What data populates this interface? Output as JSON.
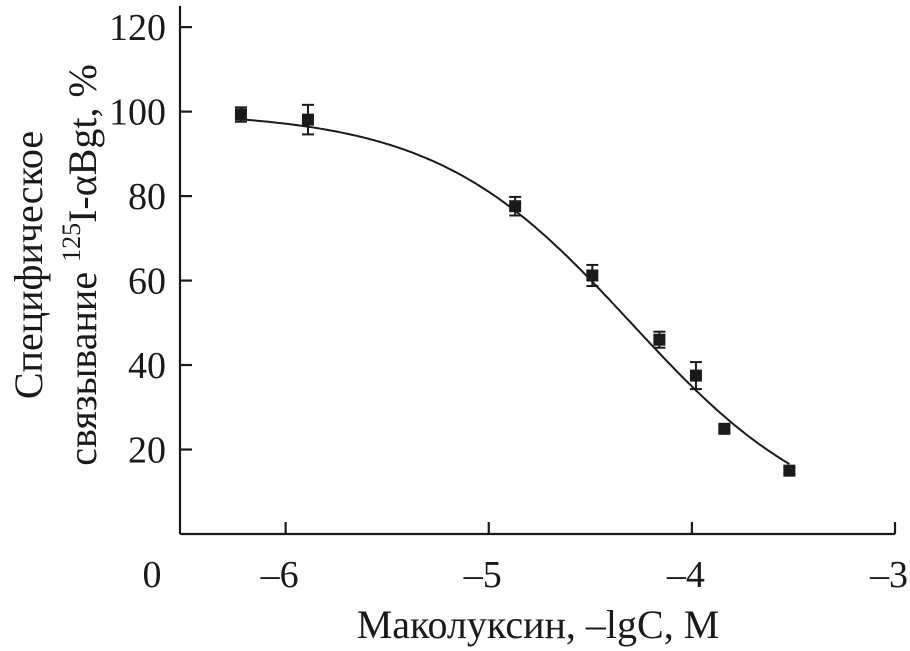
{
  "chart_data": {
    "type": "scatter",
    "xlabel": "Маколуксин, –lgC, М",
    "ylabel_line1": "Специфическое",
    "ylabel_line2_prefix": "связывание ",
    "ylabel_line2_sup": "125",
    "ylabel_line2_suffix": "I-αBgt, %",
    "xlim": [
      -6.52,
      -3
    ],
    "ylim": [
      0,
      125
    ],
    "x_ticks": [
      -6,
      -5,
      -4,
      -3
    ],
    "x_tick_labels": [
      "–6",
      "–5",
      "–4",
      "–3"
    ],
    "y_ticks": [
      20,
      40,
      60,
      80,
      100,
      120
    ],
    "y_tick_labels": [
      "20",
      "40",
      "60",
      "80",
      "100",
      "120"
    ],
    "origin_label": "0",
    "grid": false,
    "points": [
      {
        "x": -6.22,
        "y": 99.3,
        "err": 1.7
      },
      {
        "x": -5.89,
        "y": 98.1,
        "err": 3.5
      },
      {
        "x": -4.87,
        "y": 77.6,
        "err": 2.2
      },
      {
        "x": -4.49,
        "y": 61.2,
        "err": 2.5
      },
      {
        "x": -4.16,
        "y": 46.0,
        "err": 1.9
      },
      {
        "x": -3.98,
        "y": 37.5,
        "err": 3.2
      },
      {
        "x": -3.84,
        "y": 24.9,
        "err": 0.8
      },
      {
        "x": -3.52,
        "y": 15.0,
        "err": 0.7
      }
    ],
    "fit": {
      "type": "sigmoid",
      "top": 100,
      "bottom": 0,
      "log_ic50": -4.3,
      "hill": 0.9
    },
    "fit_range": [
      -6.22,
      -3.52
    ]
  }
}
